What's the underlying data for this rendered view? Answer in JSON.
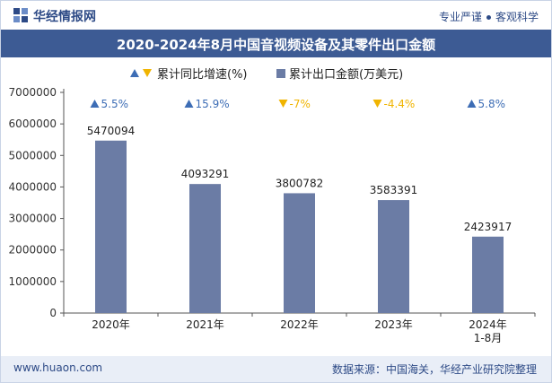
{
  "header": {
    "logo_text": "华经情报网",
    "tagline_left": "专业严谨",
    "tagline_right": "客观科学"
  },
  "chart_data": {
    "type": "bar",
    "title": "2020-2024年8月中国音视频设备及其零件出口金额",
    "categories": [
      "2020年",
      "2021年",
      "2022年",
      "2023年",
      "2024年\n1-8月"
    ],
    "series": [
      {
        "name": "累计出口金额(万美元)",
        "values": [
          5470094,
          4093291,
          3800782,
          3583391,
          2423917
        ],
        "color": "#6b7ca5"
      },
      {
        "name": "累计同比增速(%)",
        "values": [
          "5.5%",
          "15.9%",
          "-7%",
          "-4.4%",
          "5.8%"
        ],
        "colors": {
          "up": "#3d6db5",
          "down": "#f0b400"
        }
      }
    ],
    "yticks": [
      "0",
      "1000000",
      "2000000",
      "3000000",
      "4000000",
      "5000000",
      "6000000",
      "7000000"
    ],
    "ylim": [
      0,
      7000000
    ],
    "legend": "top-center",
    "grid": false
  },
  "footer": {
    "url": "www.huaon.com",
    "source": "数据来源：中国海关，华经产业研究院整理"
  }
}
